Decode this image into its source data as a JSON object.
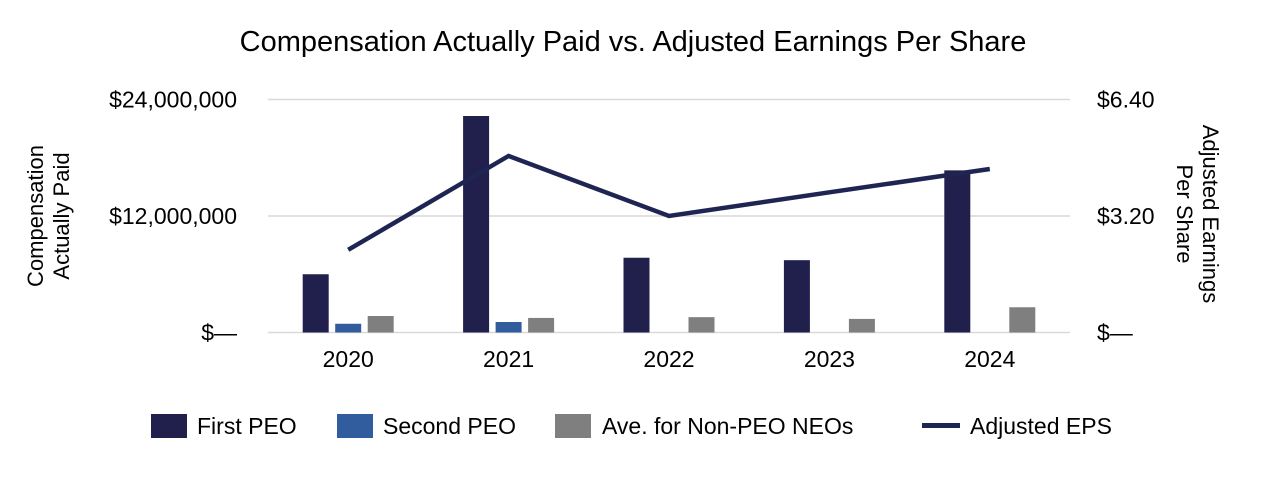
{
  "title": "Compensation Actually Paid vs. Adjusted Earnings Per Share",
  "left_axis": {
    "title_line1": "Compensation",
    "title_line2": "Actually Paid",
    "ticks": [
      {
        "label": "$—",
        "value": 0
      },
      {
        "label": "$12,000,000",
        "value": 12000000
      },
      {
        "label": "$24,000,000",
        "value": 24000000
      }
    ]
  },
  "right_axis": {
    "title_line1": "Adjusted Earnings",
    "title_line2": "Per Share",
    "ticks": [
      {
        "label": "$—",
        "value": 0
      },
      {
        "label": "$3.20",
        "value": 3.2
      },
      {
        "label": "$6.40",
        "value": 6.4
      }
    ]
  },
  "legend": {
    "items": [
      {
        "label": "First PEO",
        "color": "#211f4c",
        "swatch": "square"
      },
      {
        "label": "Second PEO",
        "color": "#315c9d",
        "swatch": "square"
      },
      {
        "label": "Ave. for Non-PEO NEOs",
        "color": "#7f7f7f",
        "swatch": "square"
      },
      {
        "label": "Adjusted EPS",
        "color": "#1e2553",
        "swatch": "line"
      }
    ]
  },
  "colors": {
    "grid": "#d9d9d9",
    "text": "#000000",
    "background": "#ffffff",
    "first_peo": "#211f4c",
    "second_peo": "#315c9d",
    "non_peo_neos": "#7f7f7f",
    "adjusted_eps_line": "#1e2553"
  },
  "chart_data": {
    "type": "combo",
    "categories": [
      "2020",
      "2021",
      "2022",
      "2023",
      "2024"
    ],
    "series": [
      {
        "name": "First PEO",
        "type": "bar",
        "axis": "left",
        "color": "#211f4c",
        "values": [
          6000000,
          22300000,
          7700000,
          7450000,
          16700000
        ]
      },
      {
        "name": "Second PEO",
        "type": "bar",
        "axis": "left",
        "color": "#315c9d",
        "values": [
          900000,
          1080000,
          null,
          null,
          null
        ]
      },
      {
        "name": "Ave. for Non-PEO NEOs",
        "type": "bar",
        "axis": "left",
        "color": "#7f7f7f",
        "values": [
          1700000,
          1500000,
          1580000,
          1400000,
          2600000
        ]
      },
      {
        "name": "Adjusted EPS",
        "type": "line",
        "axis": "right",
        "color": "#1e2553",
        "values": [
          2.27,
          4.85,
          3.2,
          3.85,
          4.49
        ]
      }
    ],
    "title": "Compensation Actually Paid vs. Adjusted Earnings Per Share",
    "left_ylabel": "Compensation Actually Paid",
    "right_ylabel": "Adjusted Earnings Per Share",
    "left_ylim": [
      0,
      24000000
    ],
    "right_ylim": [
      0,
      6.4
    ],
    "grid": "horizontal",
    "legend_position": "bottom"
  }
}
